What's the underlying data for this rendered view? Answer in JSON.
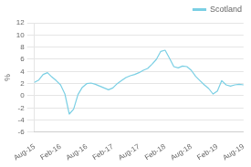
{
  "chart_data": {
    "type": "line",
    "ylabel": "%",
    "x": [
      0,
      1,
      2,
      3,
      4,
      5,
      6,
      7,
      8,
      9,
      10,
      11,
      12,
      13,
      14,
      15,
      16,
      17,
      18,
      19,
      20,
      21,
      22,
      23,
      24,
      25,
      26,
      27,
      28,
      29,
      30,
      31,
      32,
      33,
      34,
      35,
      36,
      37,
      38,
      39,
      40,
      41,
      42,
      43,
      44,
      45,
      46,
      47,
      48
    ],
    "series": [
      {
        "name": "Scotland",
        "color": "#7acfe4",
        "values": [
          2.2,
          2.6,
          3.5,
          3.8,
          3.1,
          2.5,
          1.8,
          0.3,
          -3.0,
          -2.2,
          0.2,
          1.4,
          2.0,
          2.1,
          1.9,
          1.6,
          1.3,
          1.0,
          1.3,
          2.0,
          2.5,
          3.0,
          3.3,
          3.5,
          3.8,
          4.2,
          4.5,
          5.2,
          6.0,
          7.3,
          7.5,
          6.2,
          4.8,
          4.6,
          4.9,
          4.8,
          4.2,
          3.2,
          2.5,
          1.8,
          1.2,
          0.3,
          0.8,
          2.5,
          1.8,
          1.6,
          1.8,
          1.9,
          1.8
        ]
      }
    ],
    "xlim": [
      0,
      48
    ],
    "xticks": [
      {
        "value": 0,
        "label": "Aug-15"
      },
      {
        "value": 6,
        "label": "Feb-16"
      },
      {
        "value": 12,
        "label": "Aug-16"
      },
      {
        "value": 18,
        "label": "Feb-17"
      },
      {
        "value": 24,
        "label": "Aug-17"
      },
      {
        "value": 30,
        "label": "Feb-18"
      },
      {
        "value": 36,
        "label": "Aug-18"
      },
      {
        "value": 42,
        "label": "Feb-19"
      },
      {
        "value": 48,
        "label": "Aug-19"
      }
    ],
    "ylim": [
      -6,
      12
    ],
    "yticks": [
      -6,
      -4,
      -2,
      0,
      2,
      4,
      6,
      8,
      10,
      12
    ],
    "grid": "y",
    "legend": "upper right"
  }
}
